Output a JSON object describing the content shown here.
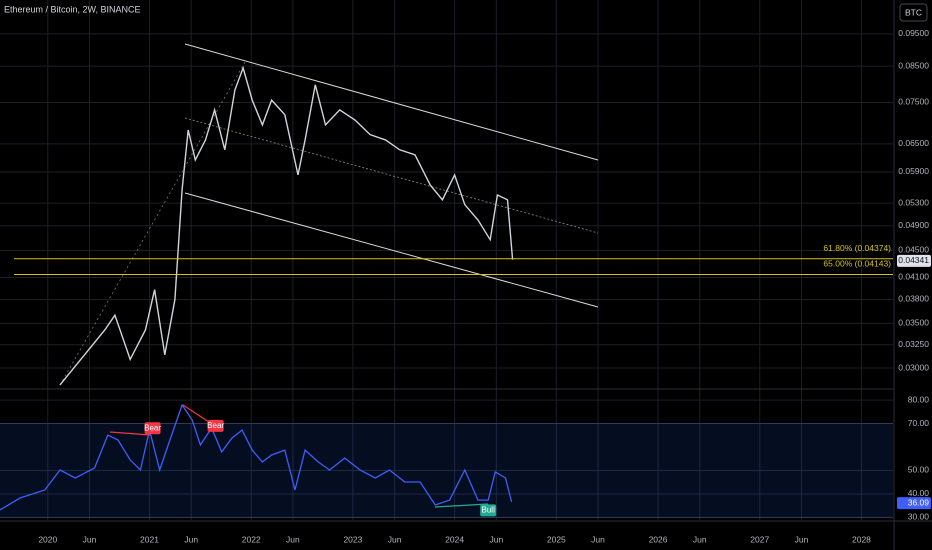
{
  "header": {
    "symbol_title": "Ethereum / Bitcoin, 2W, BINANCE",
    "currency_button": "BTC"
  },
  "price_pane": {
    "scale": "log",
    "xlim": [
      2019.53,
      2028.31
    ],
    "ylim": [
      0.028,
      0.1068
    ],
    "yticks": [
      {
        "value": 0.095,
        "label": "0.09500"
      },
      {
        "value": 0.085,
        "label": "0.08500"
      },
      {
        "value": 0.075,
        "label": "0.07500"
      },
      {
        "value": 0.065,
        "label": "0.06500"
      },
      {
        "value": 0.059,
        "label": "0.05900"
      },
      {
        "value": 0.053,
        "label": "0.05300"
      },
      {
        "value": 0.049,
        "label": "0.04900"
      },
      {
        "value": 0.045,
        "label": "0.04500"
      },
      {
        "value": 0.041,
        "label": "0.04100"
      },
      {
        "value": 0.038,
        "label": "0.03800"
      },
      {
        "value": 0.035,
        "label": "0.03500"
      },
      {
        "value": 0.0325,
        "label": "0.03250"
      },
      {
        "value": 0.03,
        "label": "0.03000"
      }
    ],
    "close": {
      "color": "#d1d4dc",
      "x": [
        2020.12,
        2020.56,
        2020.66,
        2020.81,
        2020.96,
        2021.05,
        2021.15,
        2021.25,
        2021.32,
        2021.38,
        2021.45,
        2021.55,
        2021.64,
        2021.74,
        2021.84,
        2021.92,
        2022.01,
        2022.11,
        2022.2,
        2022.33,
        2022.46,
        2022.53,
        2022.63,
        2022.73,
        2022.87,
        2023.02,
        2023.17,
        2023.32,
        2023.46,
        2023.61,
        2023.76,
        2023.88,
        2024.0,
        2024.1,
        2024.23,
        2024.35,
        2024.42,
        2024.52,
        2024.57
      ],
      "values": [
        0.0283,
        0.0342,
        0.036,
        0.0309,
        0.0342,
        0.0393,
        0.0314,
        0.038,
        0.0555,
        0.0682,
        0.0615,
        0.0659,
        0.0731,
        0.0637,
        0.0783,
        0.0845,
        0.0756,
        0.0694,
        0.0756,
        0.0719,
        0.0584,
        0.0659,
        0.0797,
        0.0694,
        0.0731,
        0.0706,
        0.0671,
        0.0659,
        0.0637,
        0.0626,
        0.0564,
        0.0536,
        0.0584,
        0.0527,
        0.05,
        0.0467,
        0.0545,
        0.0536,
        0.0436
      ]
    },
    "fib_levels": [
      {
        "label": "61.80% (0.04374)",
        "value": 0.04374
      },
      {
        "label": "65.00% (0.04143)",
        "value": 0.04143
      }
    ],
    "fib_color": "#d4c21a",
    "last_price": {
      "value": 0.04341,
      "label": "0.04341"
    }
  },
  "rsi_pane": {
    "ylim": [
      28.9,
      84.3
    ],
    "yticks": [
      {
        "value": 80,
        "label": "80.00"
      },
      {
        "value": 70,
        "label": "70.00"
      },
      {
        "value": 50,
        "label": "50.00"
      },
      {
        "value": 40,
        "label": "40.00"
      },
      {
        "value": 30,
        "label": "30.00"
      }
    ],
    "band": [
      30,
      70
    ],
    "color": "#3f5efb",
    "x": [
      2019.53,
      2019.73,
      2019.97,
      2020.12,
      2020.27,
      2020.46,
      2020.59,
      2020.69,
      2020.81,
      2020.91,
      2021.0,
      2021.1,
      2021.2,
      2021.32,
      2021.42,
      2021.5,
      2021.61,
      2021.71,
      2021.81,
      2021.91,
      2022.01,
      2022.11,
      2022.2,
      2022.33,
      2022.43,
      2022.53,
      2022.66,
      2022.77,
      2022.92,
      2023.07,
      2023.22,
      2023.36,
      2023.51,
      2023.66,
      2023.81,
      2023.95,
      2024.1,
      2024.23,
      2024.33,
      2024.4,
      2024.5,
      2024.56
    ],
    "values": [
      33.2,
      38.3,
      41.7,
      50.2,
      46.8,
      51.1,
      65.1,
      63.0,
      54.5,
      50.2,
      67.2,
      50.2,
      63.0,
      77.9,
      71.5,
      60.9,
      68.1,
      57.9,
      63.8,
      67.2,
      58.7,
      53.6,
      56.6,
      58.7,
      41.7,
      58.7,
      53.6,
      50.2,
      55.3,
      50.2,
      46.8,
      50.2,
      45.1,
      45.1,
      35.3,
      37.4,
      50.2,
      37.4,
      37.4,
      49.4,
      46.8,
      36.6
    ],
    "annotations": [
      {
        "label": "Bear",
        "x": 2021.03,
        "value": 68,
        "color": "#f23645"
      },
      {
        "label": "Bear",
        "x": 2021.65,
        "value": 69,
        "color": "#f23645"
      },
      {
        "label": "Bull",
        "x": 2024.33,
        "value": 33,
        "color": "#22ab94"
      }
    ],
    "last": {
      "value": 36.09,
      "label": "36.09"
    }
  },
  "time_axis": {
    "ticks": [
      2020,
      {
        "value": 2020.41,
        "label": "Jun"
      },
      2021,
      {
        "value": 2021.41,
        "label": "Jun"
      },
      2022,
      {
        "value": 2022.41,
        "label": "Jun"
      },
      2023,
      {
        "value": 2023.41,
        "label": "Jun"
      },
      2024,
      {
        "value": 2024.41,
        "label": "Jun"
      },
      2025,
      {
        "value": 2025.41,
        "label": "Jun"
      },
      2026,
      {
        "value": 2026.41,
        "label": "Jun"
      },
      2027,
      {
        "value": 2027.41,
        "label": "Jun"
      },
      2028
    ]
  }
}
